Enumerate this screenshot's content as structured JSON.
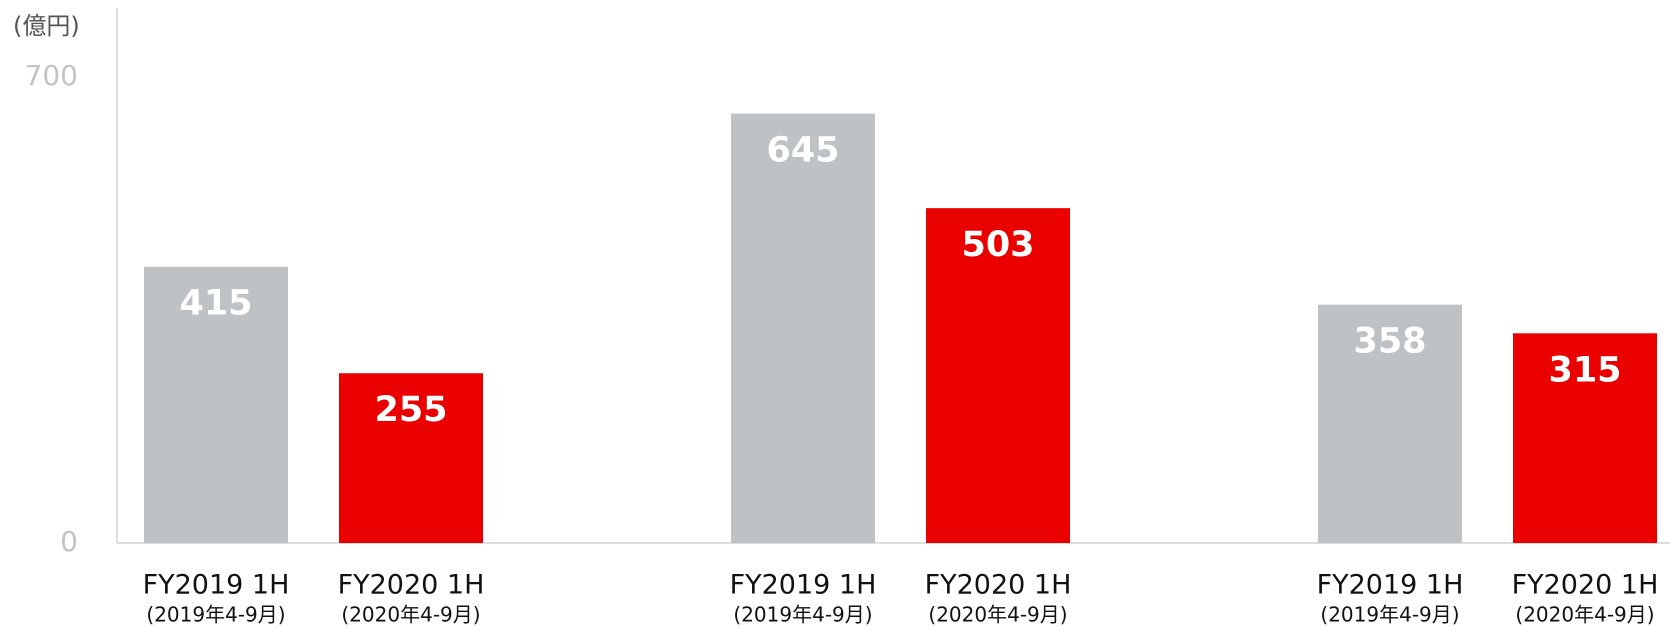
{
  "chart_data": {
    "type": "bar",
    "y_label": "(億円)",
    "series": [
      {
        "name": "FY2019 1H",
        "sublabel": "(2019年4-9月)",
        "color": "#bfc2c5",
        "values": [
          415,
          645,
          358
        ]
      },
      {
        "name": "FY2020 1H",
        "sublabel": "(2020年4-9月)",
        "color": "#eb0000",
        "values": [
          255,
          503,
          315
        ]
      }
    ],
    "ylim": [
      0,
      700
    ],
    "yticks": [
      0,
      700
    ]
  }
}
